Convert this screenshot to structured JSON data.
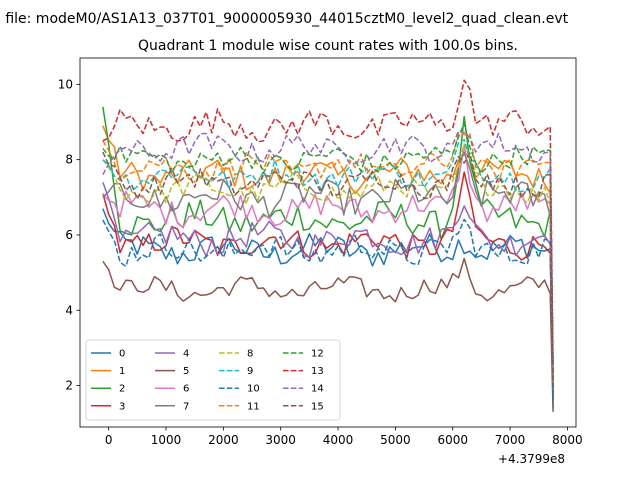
{
  "suptitle": "n file: modeM0/AS1A13_037T01_9000005930_44015cztM0_level2_quad_clean.evt",
  "chart_data": {
    "type": "line",
    "title": "Quadrant 1 module wise count rates with 100.0s bins.",
    "xlabel": "",
    "ylabel": "",
    "x_offset_label": "+4.3799e8",
    "xlim": [
      -500,
      8150
    ],
    "ylim": [
      0.9,
      10.7
    ],
    "xticks": [
      0,
      1000,
      2000,
      3000,
      4000,
      5000,
      6000,
      7000,
      8000
    ],
    "yticks": [
      2,
      4,
      6,
      8,
      10
    ],
    "grid": false,
    "legend_position": "lower-left",
    "x_start": -100,
    "x_step": 100,
    "tail_x": [
      7700,
      7750
    ],
    "series": [
      {
        "name": "0",
        "color": "#1f77b4",
        "dash": "solid",
        "base": 5.6,
        "amp": 0.35,
        "start": 6.7,
        "bump": 0.4,
        "end": 1.4
      },
      {
        "name": "1",
        "color": "#ff7f0e",
        "dash": "solid",
        "base": 7.6,
        "amp": 0.35,
        "start": 8.9,
        "bump": 0.9,
        "end": 1.9
      },
      {
        "name": "2",
        "color": "#2ca02c",
        "dash": "solid",
        "base": 6.4,
        "amp": 0.4,
        "start": 9.4,
        "bump": 2.4,
        "end": 1.7
      },
      {
        "name": "3",
        "color": "#d62728",
        "dash": "solid",
        "base": 5.8,
        "amp": 0.35,
        "start": 7.1,
        "bump": 1.4,
        "end": 1.6
      },
      {
        "name": "4",
        "color": "#9467bd",
        "dash": "solid",
        "base": 5.9,
        "amp": 0.35,
        "start": 7.4,
        "bump": 1.0,
        "end": 1.8
      },
      {
        "name": "5",
        "color": "#8c564b",
        "dash": "solid",
        "base": 4.55,
        "amp": 0.25,
        "start": 5.3,
        "bump": 0.6,
        "end": 1.3
      },
      {
        "name": "6",
        "color": "#e377c2",
        "dash": "solid",
        "base": 6.7,
        "amp": 0.35,
        "start": 7.1,
        "bump": 1.6,
        "end": 2.0
      },
      {
        "name": "7",
        "color": "#7f7f7f",
        "dash": "solid",
        "base": 7.0,
        "amp": 0.4,
        "start": 7.0,
        "bump": 1.0,
        "end": 1.9
      },
      {
        "name": "8",
        "color": "#bcbd22",
        "dash": "dashed",
        "base": 7.2,
        "amp": 0.3,
        "start": 8.0,
        "bump": 1.0,
        "end": 2.3
      },
      {
        "name": "9",
        "color": "#17becf",
        "dash": "dashed",
        "base": 7.6,
        "amp": 0.3,
        "start": 8.0,
        "bump": 0.8,
        "end": 2.4
      },
      {
        "name": "10",
        "color": "#1f77b4",
        "dash": "dashed",
        "base": 5.6,
        "amp": 0.35,
        "start": 6.4,
        "bump": 0.5,
        "end": 1.6
      },
      {
        "name": "11",
        "color": "#ff7f0e",
        "dash": "dashed",
        "base": 7.8,
        "amp": 0.3,
        "start": 8.5,
        "bump": 1.1,
        "end": 2.1
      },
      {
        "name": "12",
        "color": "#2ca02c",
        "dash": "dashed",
        "base": 8.0,
        "amp": 0.3,
        "start": 8.3,
        "bump": 0.9,
        "end": 2.3
      },
      {
        "name": "13",
        "color": "#d62728",
        "dash": "dashed",
        "base": 8.9,
        "amp": 0.35,
        "start": 8.5,
        "bump": 1.4,
        "end": 2.6
      },
      {
        "name": "14",
        "color": "#9467bd",
        "dash": "dashed",
        "base": 8.3,
        "amp": 0.3,
        "start": 7.6,
        "bump": 0.6,
        "end": 2.2
      },
      {
        "name": "15",
        "color": "#8c564b",
        "dash": "dashed",
        "base": 7.4,
        "amp": 0.3,
        "start": 8.2,
        "bump": 0.7,
        "end": 2.0
      }
    ]
  }
}
